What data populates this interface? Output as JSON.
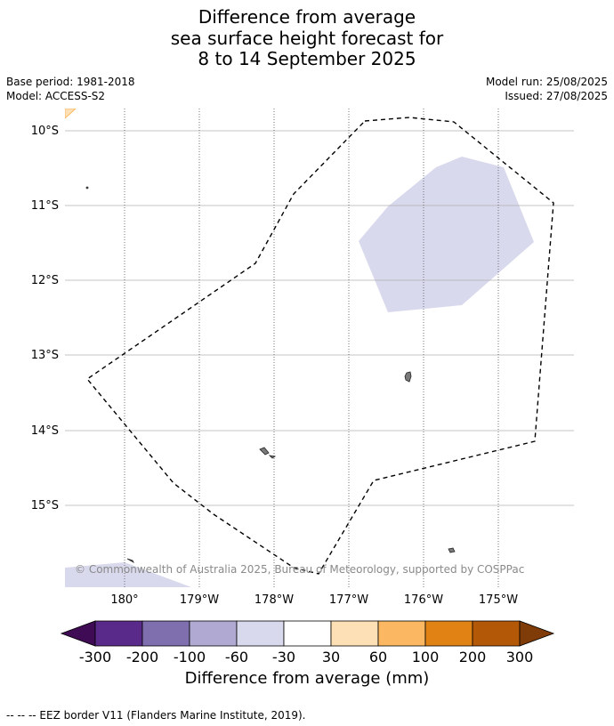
{
  "title": {
    "line1": "Difference from average",
    "line2": "sea surface height forecast for",
    "line3": "8 to 14 September 2025"
  },
  "meta": {
    "base_period": "Base period: 1981-2018",
    "model": "Model: ACCESS-S2",
    "model_run": "Model run: 25/08/2025",
    "issued": "Issued: 27/08/2025"
  },
  "map": {
    "lat_labels": [
      "10°S",
      "11°S",
      "12°S",
      "13°S",
      "14°S",
      "15°S"
    ],
    "lon_labels": [
      "180°",
      "179°W",
      "178°W",
      "177°W",
      "176°W",
      "175°W"
    ],
    "copyright": "© Commonwealth of Australia 2025, Bureau of Meteorology, supported by COSPPac"
  },
  "colorbar": {
    "title": "Difference from average (mm)",
    "tick_labels": [
      "-300",
      "-200",
      "-100",
      "-60",
      "-30",
      "30",
      "60",
      "100",
      "200",
      "300"
    ],
    "colors": [
      "#3f0b54",
      "#5a2a8a",
      "#7f6faf",
      "#b0a9d2",
      "#d8d9ec",
      "#ffffff",
      "#fee0b6",
      "#fbb761",
      "#e08214",
      "#b35806",
      "#7f3b08"
    ]
  },
  "footnote": "--  --  -- EEZ border V11 (Flanders Marine Institute, 2019)."
}
